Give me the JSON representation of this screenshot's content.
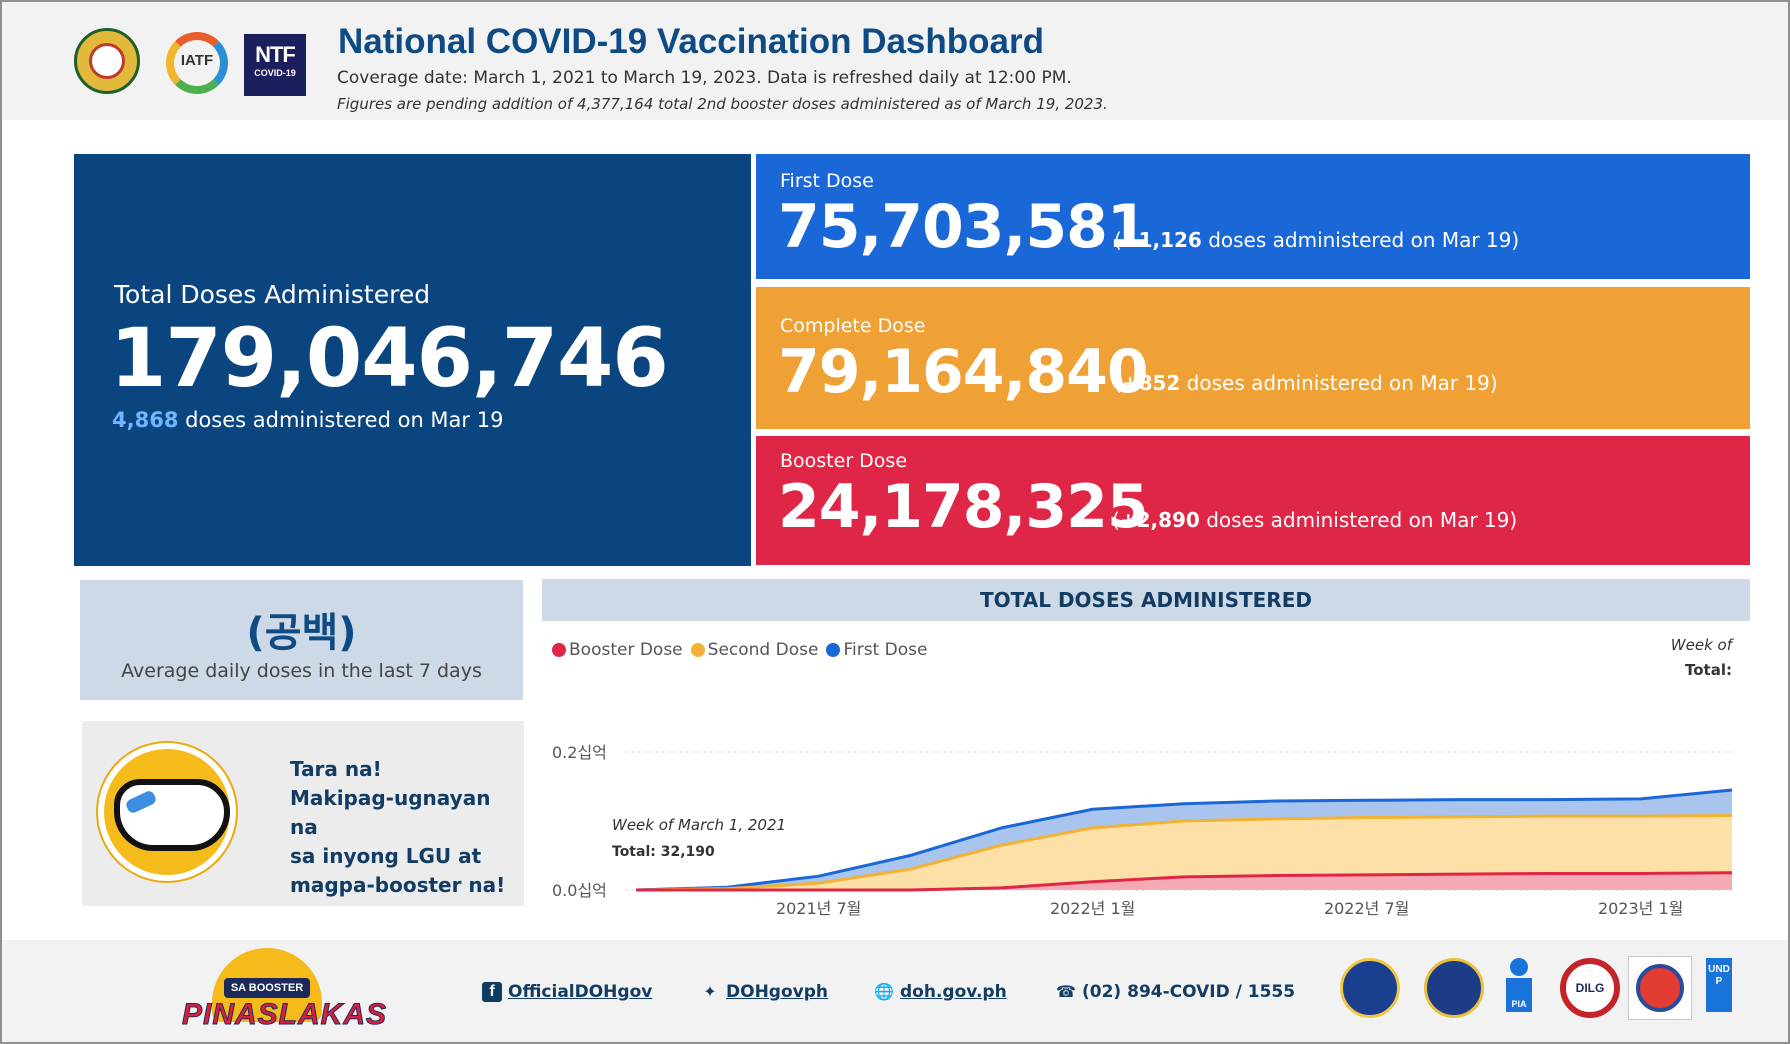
{
  "header": {
    "title": "National COVID-19 Vaccination Dashboard",
    "coverage": "Coverage date: March 1, 2021 to March 19, 2023. Data is refreshed daily at 12:00 PM.",
    "note": "Figures are pending addition of 4,377,164 total 2nd booster doses administered as of March 19, 2023.",
    "logos": {
      "iatf": "IATF",
      "ntf_big": "NTF",
      "ntf_small": "COVID-19"
    }
  },
  "total": {
    "label": "Total Doses Administered",
    "value": "179,046,746",
    "daily_num": "4,868",
    "daily_text": " doses administered on Mar 19"
  },
  "first": {
    "label": "First Dose",
    "value": "75,703,581",
    "delta_open": "(",
    "delta_num": "+1,126",
    "delta_text": " doses administered on Mar 19)"
  },
  "complete": {
    "label": "Complete Dose",
    "value": "79,164,840",
    "delta_open": "(",
    "delta_num": "+852",
    "delta_text": " doses administered on Mar 19)"
  },
  "booster": {
    "label": "Booster Dose",
    "value": "24,178,325",
    "delta_open": "(",
    "delta_num": "+2,890",
    "delta_text": " doses administered on Mar 19)"
  },
  "avg": {
    "value": "(공백)",
    "label": "Average daily doses in the last 7 days"
  },
  "promo": {
    "line1": "Tara na!",
    "line2": "Makipag-ugnayan na",
    "line3": "sa inyong LGU at",
    "line4": "magpa-booster na!"
  },
  "chart_panel": {
    "heading": "TOTAL DOSES ADMINISTERED",
    "legend": [
      {
        "label": "Booster Dose",
        "color": "#df2646"
      },
      {
        "label": "Second Dose",
        "color": "#f2b233"
      },
      {
        "label": "First Dose",
        "color": "#1a67d8"
      }
    ],
    "week_of_right": "Week of",
    "total_right": "Total:",
    "tooltip_week": "Week of March 1, 2021",
    "tooltip_total": "Total: 32,190"
  },
  "chart_data": {
    "type": "area",
    "xlabel": "",
    "ylabel": "",
    "y_ticks": [
      "0.0십억",
      "0.2십억"
    ],
    "x_ticks": [
      "2021년 7월",
      "2022년 1월",
      "2022년 7월",
      "2023년 1월"
    ],
    "x": [
      "2021-03",
      "2021-05",
      "2021-07",
      "2021-09",
      "2021-11",
      "2022-01",
      "2022-03",
      "2022-05",
      "2022-07",
      "2022-09",
      "2022-11",
      "2023-01",
      "2023-03"
    ],
    "series": [
      {
        "name": "Booster Dose",
        "values": [
          0,
          0,
          0,
          0,
          0.003,
          0.012,
          0.019,
          0.021,
          0.022,
          0.023,
          0.024,
          0.024,
          0.025
        ]
      },
      {
        "name": "Second Dose",
        "values": [
          0,
          0.002,
          0.01,
          0.03,
          0.065,
          0.09,
          0.1,
          0.103,
          0.105,
          0.106,
          0.107,
          0.107,
          0.108
        ]
      },
      {
        "name": "First Dose",
        "values": [
          0,
          0.004,
          0.02,
          0.05,
          0.09,
          0.117,
          0.125,
          0.129,
          0.13,
          0.131,
          0.131,
          0.132,
          0.145
        ]
      }
    ],
    "ylim": [
      0,
      0.2
    ],
    "grid": true,
    "legend_position": "top-left"
  },
  "footer": {
    "facebook": "OfficialDOHgov",
    "twitter": "DOHgovph",
    "website": "doh.gov.ph",
    "phone": "(02) 894-COVID / 1555",
    "logo_band": "SA BOOSTER",
    "logo_word": "PINASLAKAS",
    "partner_pia": "PIA",
    "partner_dilg": "DILG",
    "partner_undp": "UNDP"
  },
  "colors": {
    "navy": "#0a4580",
    "blue": "#1a67d8",
    "orange": "#f0a135",
    "red": "#df2646"
  }
}
